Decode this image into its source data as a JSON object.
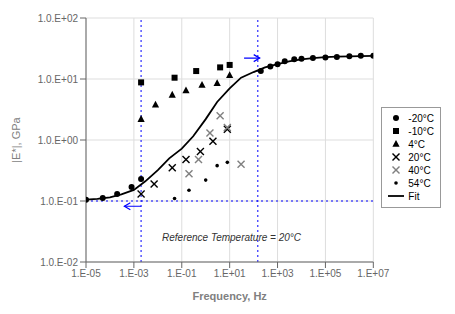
{
  "chart_data": {
    "type": "scatter",
    "xlabel": "Frequency, Hz",
    "ylabel": "|E*|, GPa",
    "log": true,
    "grid": true,
    "legend": "right",
    "xlim": [
      1e-05,
      10000000.0
    ],
    "ylim": [
      0.01,
      100
    ],
    "xticks": [
      {
        "value": 1e-05,
        "label": "1.E-05"
      },
      {
        "value": 0.001,
        "label": "1.E-03"
      },
      {
        "value": 0.1,
        "label": "1.E-01"
      },
      {
        "value": 10.0,
        "label": "1.E+01"
      },
      {
        "value": 1000.0,
        "label": "1.E+03"
      },
      {
        "value": 100000.0,
        "label": "1.E+05"
      },
      {
        "value": 10000000.0,
        "label": "1.E+07"
      }
    ],
    "yticks": [
      {
        "value": 0.01,
        "label": "1.0.E-02"
      },
      {
        "value": 0.1,
        "label": "1.0.E-01"
      },
      {
        "value": 1.0,
        "label": "1.0.E+00"
      },
      {
        "value": 10.0,
        "label": "1.0.E+01"
      },
      {
        "value": 100.0,
        "label": "1.0.E+02"
      }
    ],
    "series": [
      {
        "name": "-20°C",
        "type": "scatter",
        "marker": "circle",
        "color": "black",
        "x": [
          1e-05,
          5e-05,
          0.0002,
          0.0008,
          0.002,
          200.0,
          500.0,
          1000.0,
          2000.0,
          5000.0,
          10000.0,
          30000.0,
          100000.0,
          300000.0,
          1000000.0,
          3000000.0,
          10000000.0
        ],
        "values": [
          0.105,
          0.112,
          0.13,
          0.17,
          0.23,
          13.5,
          16.0,
          17.5,
          19.5,
          21.0,
          21.5,
          22.0,
          22.5,
          23.0,
          23.5,
          24.0,
          24.0
        ]
      },
      {
        "name": "-10°C",
        "type": "scatter",
        "marker": "square",
        "color": "black",
        "x": [
          0.002,
          0.05,
          0.4,
          4.0,
          10.0
        ],
        "values": [
          8.8,
          10.5,
          13.5,
          15.5,
          17.0
        ]
      },
      {
        "name": "4°C",
        "type": "scatter",
        "marker": "triangle",
        "color": "black",
        "x": [
          0.002,
          0.008,
          0.04,
          0.15,
          0.7,
          3.0,
          10.0
        ],
        "values": [
          2.2,
          3.8,
          5.5,
          6.5,
          8.0,
          8.5,
          11.5
        ]
      },
      {
        "name": "20°C",
        "type": "scatter",
        "marker": "x",
        "color": "black",
        "x": [
          0.002,
          0.007,
          0.04,
          0.15,
          0.6,
          2.0,
          8.0
        ],
        "values": [
          0.13,
          0.19,
          0.35,
          0.48,
          0.65,
          0.95,
          1.5
        ]
      },
      {
        "name": "40°C",
        "type": "scatter",
        "marker": "x",
        "color": "gray",
        "x": [
          0.2,
          0.5,
          1.5,
          4.0,
          8.0,
          30.0
        ],
        "values": [
          0.28,
          0.48,
          1.3,
          2.5,
          1.6,
          0.4
        ]
      },
      {
        "name": "54°C",
        "type": "scatter",
        "marker": "dot",
        "color": "black",
        "x": [
          0.05,
          0.2,
          1.0,
          3.0,
          8.0
        ],
        "values": [
          0.11,
          0.15,
          0.22,
          0.38,
          0.43
        ]
      },
      {
        "name": "Fit",
        "type": "line",
        "line_style": "solid",
        "color": "black",
        "x": [
          1e-05,
          3e-05,
          0.0001,
          0.0003,
          0.001,
          0.003,
          0.01,
          0.03,
          0.1,
          0.3,
          1.0,
          3.0,
          10.0,
          30.0,
          100.0,
          300.0,
          1000.0,
          3000.0,
          10000.0,
          30000.0,
          100000.0,
          300000.0,
          1000000.0,
          3000000.0,
          10000000.0
        ],
        "values": [
          0.105,
          0.108,
          0.115,
          0.128,
          0.152,
          0.21,
          0.32,
          0.5,
          0.72,
          1.15,
          2.2,
          4.2,
          7.0,
          10.5,
          13.0,
          15.5,
          17.5,
          19.5,
          21.0,
          22.0,
          22.8,
          23.2,
          23.5,
          23.8,
          24.0
        ]
      }
    ],
    "reference_lines": [
      {
        "x": 0.002,
        "color": "blue",
        "line_style": "dotted"
      },
      {
        "x": 150.0,
        "color": "blue",
        "line_style": "dotted"
      },
      {
        "y": 0.1,
        "color": "blue",
        "line_style": "dotted"
      }
    ],
    "arrows": [
      {
        "x_start": 0.002,
        "x_end": 0.0004,
        "y": 0.082,
        "color": "blue"
      },
      {
        "x_start": 40.0,
        "x_end": 180.0,
        "y": 22,
        "color": "blue"
      }
    ],
    "annotations": [
      {
        "text": "Reference Temperature = 20°C",
        "x": 0.015,
        "y": 0.022
      }
    ]
  }
}
